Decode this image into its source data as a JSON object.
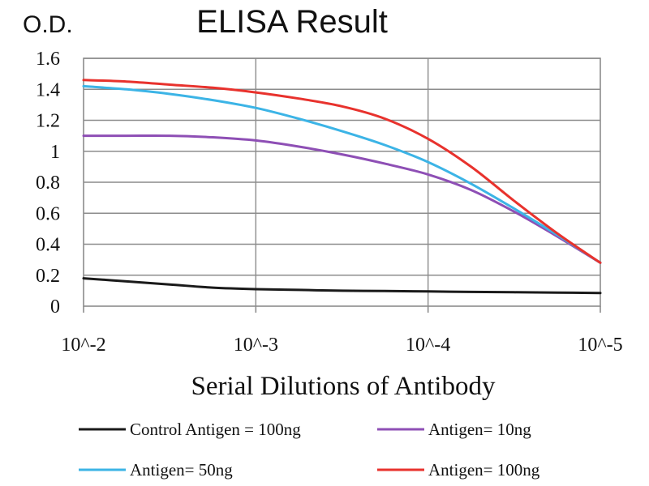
{
  "chart_data": {
    "type": "line",
    "title": "ELISA Result",
    "ylabel": "O.D.",
    "xlabel": "Serial Dilutions of Antibody",
    "categories": [
      "10^-2",
      "10^-3",
      "10^-4",
      "10^-5"
    ],
    "ylim": [
      0,
      1.6
    ],
    "yticks": [
      "0",
      "0.2",
      "0.4",
      "0.6",
      "0.8",
      "1",
      "1.2",
      "1.4",
      "1.6"
    ],
    "grid": true,
    "legend_position": "bottom",
    "series": [
      {
        "name": "Control Antigen = 100ng",
        "color": "#1a1a1a",
        "x": [
          0,
          0.25,
          0.5,
          0.75,
          1,
          1.25,
          1.5,
          1.75,
          2,
          2.25,
          2.5,
          2.75,
          3
        ],
        "values": [
          0.18,
          0.16,
          0.14,
          0.12,
          0.11,
          0.105,
          0.1,
          0.098,
          0.095,
          0.092,
          0.09,
          0.088,
          0.085
        ]
      },
      {
        "name": "Antigen= 10ng",
        "color": "#8e4fb5",
        "x": [
          0,
          0.25,
          0.5,
          0.75,
          1,
          1.25,
          1.5,
          1.75,
          2,
          2.25,
          2.5,
          2.75,
          3
        ],
        "values": [
          1.1,
          1.1,
          1.1,
          1.09,
          1.07,
          1.03,
          0.98,
          0.92,
          0.85,
          0.75,
          0.61,
          0.45,
          0.28
        ]
      },
      {
        "name": "Antigen= 50ng",
        "color": "#3cb4e6",
        "x": [
          0,
          0.25,
          0.5,
          0.75,
          1,
          1.25,
          1.5,
          1.75,
          2,
          2.25,
          2.5,
          2.75,
          3
        ],
        "values": [
          1.42,
          1.4,
          1.37,
          1.33,
          1.28,
          1.21,
          1.13,
          1.04,
          0.93,
          0.79,
          0.63,
          0.46,
          0.28
        ]
      },
      {
        "name": "Antigen= 100ng",
        "color": "#e8322d",
        "x": [
          0,
          0.25,
          0.5,
          0.75,
          1,
          1.25,
          1.5,
          1.75,
          2,
          2.25,
          2.5,
          2.75,
          3
        ],
        "values": [
          1.46,
          1.45,
          1.43,
          1.41,
          1.38,
          1.34,
          1.29,
          1.21,
          1.08,
          0.9,
          0.68,
          0.47,
          0.28
        ]
      }
    ]
  }
}
